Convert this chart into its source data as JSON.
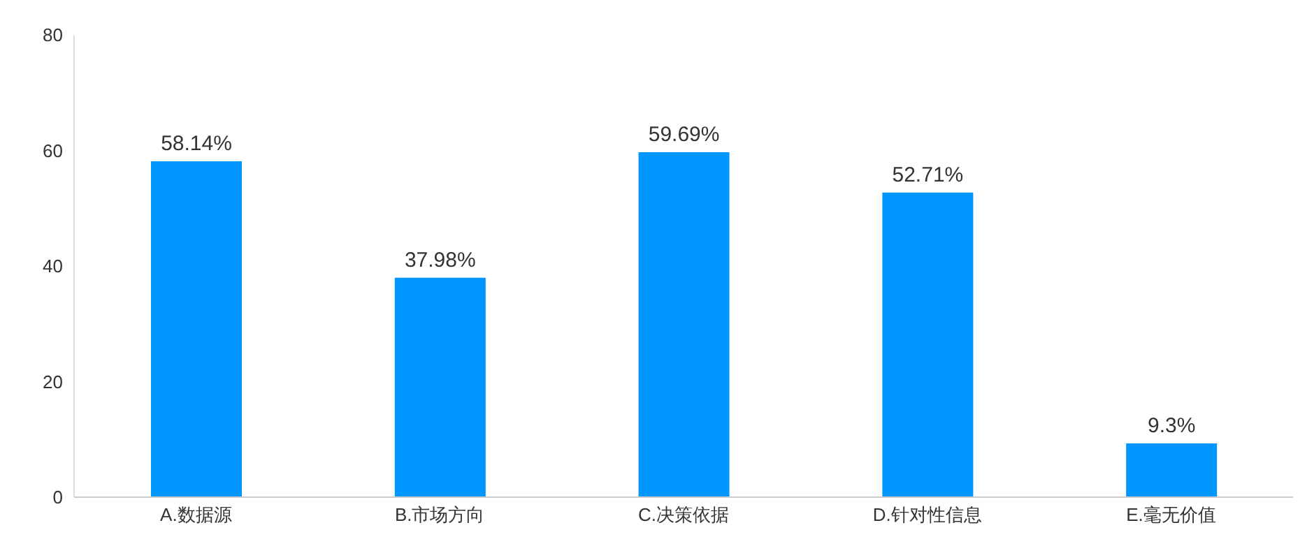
{
  "chart_data": {
    "type": "bar",
    "categories": [
      "A.数据源",
      "B.市场方向",
      "C.决策依据",
      "D.针对性信息",
      "E.毫无价值"
    ],
    "values": [
      58.14,
      37.98,
      59.69,
      52.71,
      9.3
    ],
    "value_labels": [
      "58.14%",
      "37.98%",
      "59.69%",
      "52.71%",
      "9.3%"
    ],
    "color": "#0096ff",
    "ylim": [
      0,
      80
    ],
    "yticks": [
      0,
      20,
      40,
      60,
      80
    ],
    "grid": false,
    "legend": false
  }
}
